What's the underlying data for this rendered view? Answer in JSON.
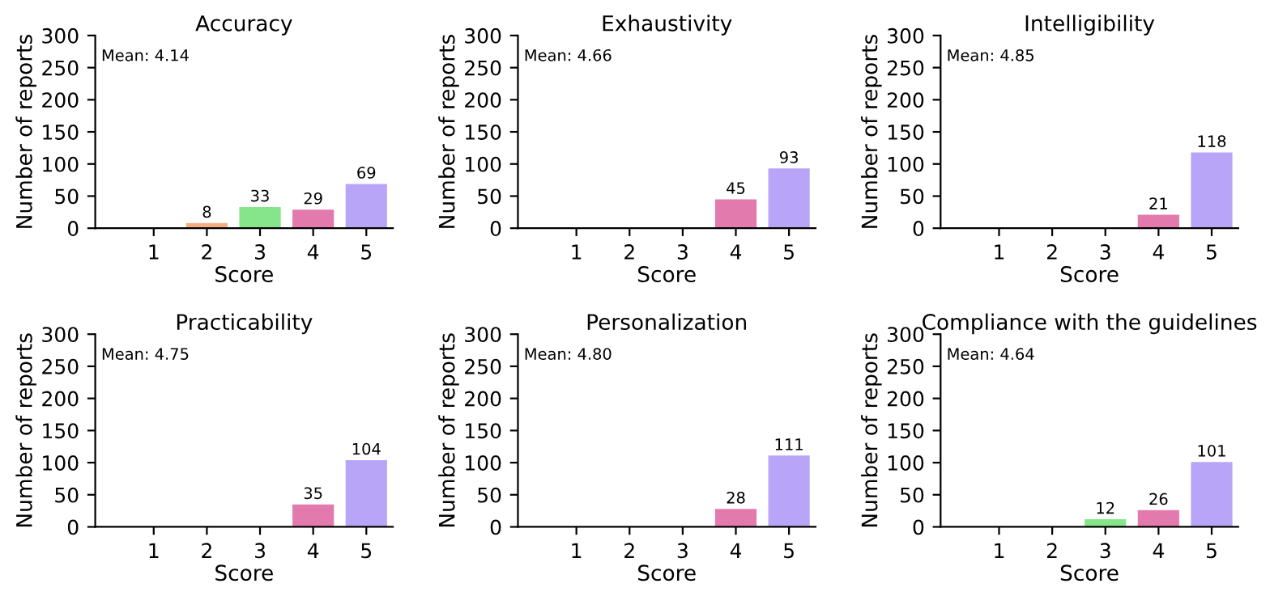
{
  "chart_data": [
    {
      "type": "bar",
      "title": "Accuracy",
      "xlabel": "Score",
      "ylabel": "Number of reports",
      "categories": [
        "1",
        "2",
        "3",
        "4",
        "5"
      ],
      "values": [
        null,
        8,
        33,
        29,
        69
      ],
      "colors": [
        "#8fb8e8",
        "#f5ae84",
        "#86e58a",
        "#e37aae",
        "#b9a5f7"
      ],
      "ylim": [
        0,
        300
      ],
      "yticks": [
        0,
        50,
        100,
        150,
        200,
        250,
        300
      ],
      "data_labels": true,
      "annotations": [
        "Mean: 4.14"
      ]
    },
    {
      "type": "bar",
      "title": "Exhaustivity",
      "xlabel": "Score",
      "ylabel": "Number of reports",
      "categories": [
        "1",
        "2",
        "3",
        "4",
        "5"
      ],
      "values": [
        null,
        null,
        null,
        45,
        93
      ],
      "colors": [
        "#8fb8e8",
        "#f5ae84",
        "#86e58a",
        "#e37aae",
        "#b9a5f7"
      ],
      "ylim": [
        0,
        300
      ],
      "yticks": [
        0,
        50,
        100,
        150,
        200,
        250,
        300
      ],
      "data_labels": true,
      "annotations": [
        "Mean: 4.66"
      ]
    },
    {
      "type": "bar",
      "title": "Intelligibility",
      "xlabel": "Score",
      "ylabel": "Number of reports",
      "categories": [
        "1",
        "2",
        "3",
        "4",
        "5"
      ],
      "values": [
        null,
        null,
        null,
        21,
        118
      ],
      "colors": [
        "#8fb8e8",
        "#f5ae84",
        "#86e58a",
        "#e37aae",
        "#b9a5f7"
      ],
      "ylim": [
        0,
        300
      ],
      "yticks": [
        0,
        50,
        100,
        150,
        200,
        250,
        300
      ],
      "data_labels": true,
      "annotations": [
        "Mean: 4.85"
      ]
    },
    {
      "type": "bar",
      "title": "Practicability",
      "xlabel": "Score",
      "ylabel": "Number of reports",
      "categories": [
        "1",
        "2",
        "3",
        "4",
        "5"
      ],
      "values": [
        null,
        null,
        null,
        35,
        104
      ],
      "colors": [
        "#8fb8e8",
        "#f5ae84",
        "#86e58a",
        "#e37aae",
        "#b9a5f7"
      ],
      "ylim": [
        0,
        300
      ],
      "yticks": [
        0,
        50,
        100,
        150,
        200,
        250,
        300
      ],
      "data_labels": true,
      "annotations": [
        "Mean: 4.75"
      ]
    },
    {
      "type": "bar",
      "title": "Personalization",
      "xlabel": "Score",
      "ylabel": "Number of reports",
      "categories": [
        "1",
        "2",
        "3",
        "4",
        "5"
      ],
      "values": [
        null,
        null,
        null,
        28,
        111
      ],
      "colors": [
        "#8fb8e8",
        "#f5ae84",
        "#86e58a",
        "#e37aae",
        "#b9a5f7"
      ],
      "ylim": [
        0,
        300
      ],
      "yticks": [
        0,
        50,
        100,
        150,
        200,
        250,
        300
      ],
      "data_labels": true,
      "annotations": [
        "Mean: 4.80"
      ]
    },
    {
      "type": "bar",
      "title": "Compliance with the guidelines",
      "xlabel": "Score",
      "ylabel": "Number of reports",
      "categories": [
        "1",
        "2",
        "3",
        "4",
        "5"
      ],
      "values": [
        null,
        null,
        12,
        26,
        101
      ],
      "colors": [
        "#8fb8e8",
        "#f5ae84",
        "#86e58a",
        "#e37aae",
        "#b9a5f7"
      ],
      "ylim": [
        0,
        300
      ],
      "yticks": [
        0,
        50,
        100,
        150,
        200,
        250,
        300
      ],
      "data_labels": true,
      "annotations": [
        "Mean: 4.64"
      ]
    }
  ]
}
